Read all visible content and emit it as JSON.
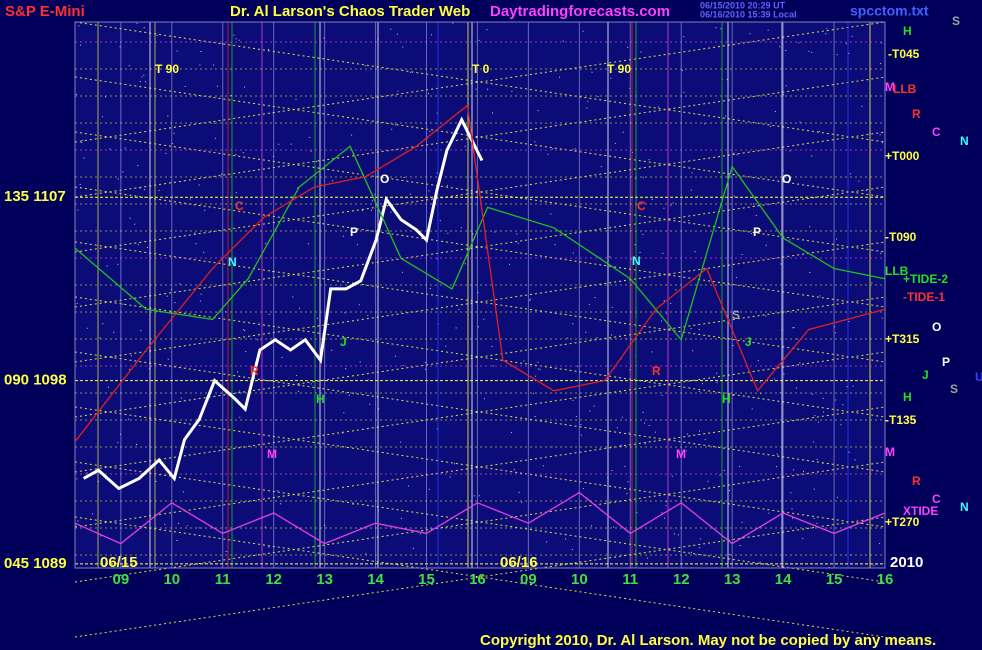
{
  "chart_data": {
    "type": "line",
    "yticks": [
      {
        "value": 1107,
        "label": "135  1107"
      },
      {
        "value": 1098,
        "label": "090  1098"
      },
      {
        "value": 1089,
        "label": "045  1089"
      }
    ],
    "ylim": [
      1088.8,
      1115.6
    ],
    "xlim": [
      -0.9,
      15.0
    ],
    "xticks": [
      {
        "value": 0,
        "label": "09"
      },
      {
        "value": 1,
        "label": "10"
      },
      {
        "value": 2,
        "label": "11"
      },
      {
        "value": 3,
        "label": "12"
      },
      {
        "value": 4,
        "label": "13"
      },
      {
        "value": 5,
        "label": "14"
      },
      {
        "value": 6,
        "label": "15"
      },
      {
        "value": 7,
        "label": "16"
      },
      {
        "value": 8,
        "label": "09"
      },
      {
        "value": 9,
        "label": "10"
      },
      {
        "value": 10,
        "label": "11"
      },
      {
        "value": 11,
        "label": "12"
      },
      {
        "value": 12,
        "label": "13"
      },
      {
        "value": 13,
        "label": "14"
      },
      {
        "value": 14,
        "label": "15"
      },
      {
        "value": 15,
        "label": "16"
      }
    ],
    "grid": true,
    "series": [
      {
        "color": "#ffffff",
        "x": [
          -0.73,
          -0.44,
          -0.04,
          0.36,
          0.75,
          1.05,
          1.25,
          1.54,
          1.84,
          2.24,
          2.44,
          2.73,
          3.03,
          3.33,
          3.62,
          3.92,
          4.12,
          4.42,
          4.71,
          5.01,
          5.21,
          5.5,
          5.8,
          6.0,
          6.2,
          6.4,
          6.69,
          6.89,
          7.09
        ],
        "values": [
          1093.2,
          1093.6,
          1092.7,
          1093.2,
          1094.1,
          1093.2,
          1095.1,
          1096.1,
          1098.0,
          1097.1,
          1096.6,
          1099.5,
          1100.0,
          1099.5,
          1100.0,
          1099.0,
          1102.5,
          1102.5,
          1102.9,
          1104.9,
          1106.9,
          1105.9,
          1105.4,
          1104.9,
          1107.3,
          1109.3,
          1110.8,
          1109.8,
          1108.8
        ]
      },
      {
        "color": "#20c020",
        "x": [
          -0.9,
          0.5,
          1.8,
          2.5,
          3.5,
          4.5,
          5.5,
          6.5,
          7.2,
          8.5,
          10,
          11,
          12,
          13,
          14,
          15
        ],
        "values": [
          1104.5,
          1101.5,
          1101,
          1103,
          1107.5,
          1109.5,
          1104,
          1102.5,
          1106.5,
          1105.5,
          1103,
          1100,
          1108.5,
          1105,
          1103.5,
          1103
        ]
      },
      {
        "color": "#e02020",
        "x": [
          -0.9,
          0.5,
          1.8,
          2.8,
          3.8,
          4.8,
          5.8,
          6.8,
          7.5,
          8.5,
          9.5,
          10.5,
          11.5,
          12.5,
          13.5,
          15
        ],
        "values": [
          1095,
          1099.5,
          1103.5,
          1106,
          1107.5,
          1108,
          1109.5,
          1111.5,
          1099,
          1097.5,
          1098,
          1101.5,
          1103.5,
          1097.5,
          1100.5,
          1101.5
        ]
      },
      {
        "color": "#e040e0",
        "x": [
          -0.9,
          0,
          1,
          2,
          3,
          4,
          5,
          6,
          7,
          8,
          9,
          10,
          11,
          12,
          13,
          14,
          15
        ],
        "values": [
          1091,
          1090,
          1092,
          1090.5,
          1091.5,
          1090,
          1091,
          1090.5,
          1092,
          1091,
          1092.5,
          1090.5,
          1092,
          1090,
          1091.5,
          1090.5,
          1091.5
        ]
      }
    ],
    "annotations": [
      {
        "text": "S&P E-Mini",
        "color": "#ff3030"
      },
      {
        "text": "Dr. Al Larson's Chaos Trader Web",
        "color": "#ffff40"
      },
      {
        "text": "Daytradingforecasts.com",
        "color": "#ff40ff"
      },
      {
        "text": "06/15/2010 20:29 UT",
        "color": "#6060ff"
      },
      {
        "text": "06/16/2010 15:39 Local",
        "color": "#6060ff"
      },
      {
        "text": "spcctom.txt",
        "color": "#4060ff"
      },
      {
        "text": "S",
        "color": "#a0a0a0"
      },
      {
        "text": "T  90",
        "color": "#ffff40"
      },
      {
        "text": "T  0",
        "color": "#ffff40"
      },
      {
        "text": "T  90",
        "color": "#ffff40"
      },
      {
        "text": "06/15",
        "color": "#ffff40"
      },
      {
        "text": "06/16",
        "color": "#ffff40"
      },
      {
        "text": "2010",
        "color": "#ffffff"
      },
      {
        "text": "Copyright 2010, Dr. Al Larson. May not be copied by any means.",
        "color": "#ffff40"
      },
      {
        "text": "H",
        "color": "#20e020"
      },
      {
        "text": "-T045",
        "color": "#ffff40"
      },
      {
        "text": "M",
        "color": "#ff40ff"
      },
      {
        "text": "LLB",
        "color": "#ff3030"
      },
      {
        "text": "R",
        "color": "#ff3030"
      },
      {
        "text": "C",
        "color": "#ff40ff"
      },
      {
        "text": "N",
        "color": "#40ffff"
      },
      {
        "text": "+T000",
        "color": "#ffff40"
      },
      {
        "text": "-T090",
        "color": "#ffff40"
      },
      {
        "text": "LLB",
        "color": "#20e020"
      },
      {
        "text": "+TIDE-2",
        "color": "#20e020"
      },
      {
        "text": "-TIDE-1",
        "color": "#ff3030"
      },
      {
        "text": "O",
        "color": "#ffffff"
      },
      {
        "text": "+T315",
        "color": "#ffff40"
      },
      {
        "text": "P",
        "color": "#ffffff"
      },
      {
        "text": "J",
        "color": "#20e020"
      },
      {
        "text": "S",
        "color": "#a0a0a0"
      },
      {
        "text": "U",
        "color": "#4040ff"
      },
      {
        "text": "H",
        "color": "#20e020"
      },
      {
        "text": "-T135",
        "color": "#ffff40"
      },
      {
        "text": "M",
        "color": "#ff40ff"
      },
      {
        "text": "R",
        "color": "#ff3030"
      },
      {
        "text": "C",
        "color": "#ff40ff"
      },
      {
        "text": "N",
        "color": "#40ffff"
      },
      {
        "text": "XTIDE",
        "color": "#ff40ff"
      },
      {
        "text": "+T270",
        "color": "#ffff40"
      },
      {
        "text": "O",
        "color": "#ffffff"
      },
      {
        "text": "P",
        "color": "#ffffff"
      },
      {
        "text": "C",
        "color": "#ff3030"
      },
      {
        "text": "N",
        "color": "#40ffff"
      },
      {
        "text": "J",
        "color": "#20e020"
      },
      {
        "text": "H",
        "color": "#20e020"
      },
      {
        "text": "M",
        "color": "#ff40ff"
      },
      {
        "text": "O",
        "color": "#ffffff"
      },
      {
        "text": "P",
        "color": "#ffffff"
      },
      {
        "text": "C",
        "color": "#ff3030"
      },
      {
        "text": "N",
        "color": "#40ffff"
      },
      {
        "text": "J",
        "color": "#20e020"
      },
      {
        "text": "H",
        "color": "#20e020"
      },
      {
        "text": "M",
        "color": "#ff40ff"
      },
      {
        "text": "S",
        "color": "#a0a0a0"
      },
      {
        "text": "R",
        "color": "#ff3030"
      },
      {
        "text": "R",
        "color": "#ff3030"
      }
    ]
  }
}
